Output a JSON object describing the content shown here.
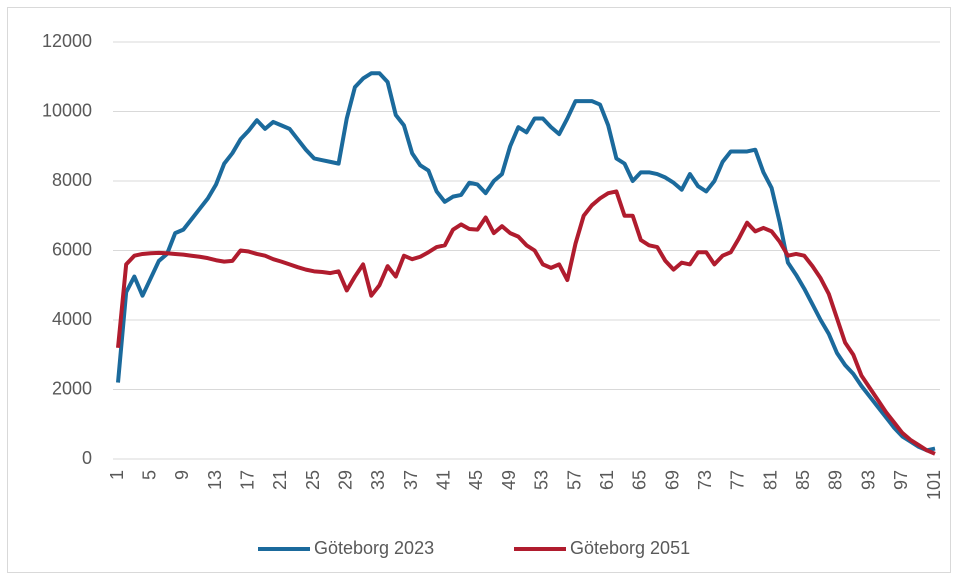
{
  "chart_data": {
    "type": "line",
    "x": [
      1,
      2,
      3,
      4,
      5,
      6,
      7,
      8,
      9,
      10,
      11,
      12,
      13,
      14,
      15,
      16,
      17,
      18,
      19,
      20,
      21,
      22,
      23,
      24,
      25,
      26,
      27,
      28,
      29,
      30,
      31,
      32,
      33,
      34,
      35,
      36,
      37,
      38,
      39,
      40,
      41,
      42,
      43,
      44,
      45,
      46,
      47,
      48,
      49,
      50,
      51,
      52,
      53,
      54,
      55,
      56,
      57,
      58,
      59,
      60,
      61,
      62,
      63,
      64,
      65,
      66,
      67,
      68,
      69,
      70,
      71,
      72,
      73,
      74,
      75,
      76,
      77,
      78,
      79,
      80,
      81,
      82,
      83,
      84,
      85,
      86,
      87,
      88,
      89,
      90,
      91,
      92,
      93,
      94,
      95,
      96,
      97,
      98,
      99,
      100,
      101
    ],
    "xlim": [
      1,
      101
    ],
    "xticks": [
      1,
      5,
      9,
      13,
      17,
      21,
      25,
      29,
      33,
      37,
      41,
      45,
      49,
      53,
      57,
      61,
      65,
      69,
      73,
      77,
      81,
      85,
      89,
      93,
      97,
      101
    ],
    "ylim": [
      0,
      12000
    ],
    "yticks": [
      0,
      2000,
      4000,
      6000,
      8000,
      10000,
      12000
    ],
    "grid": true,
    "legend": "bottom",
    "series": [
      {
        "name": "Göteborg 2023",
        "color": "#1b6a9c",
        "values": [
          2200,
          4800,
          5250,
          4700,
          5200,
          5700,
          5900,
          6500,
          6600,
          6900,
          7200,
          7500,
          7900,
          8500,
          8800,
          9200,
          9450,
          9750,
          9500,
          9700,
          9600,
          9500,
          9200,
          8900,
          8650,
          8600,
          8550,
          8500,
          9800,
          10700,
          10950,
          11100,
          11100,
          10850,
          9900,
          9600,
          8800,
          8450,
          8300,
          7700,
          7400,
          7550,
          7600,
          7950,
          7900,
          7650,
          8000,
          8200,
          9000,
          9550,
          9400,
          9800,
          9800,
          9550,
          9350,
          9800,
          10300,
          10300,
          10300,
          10200,
          9600,
          8650,
          8500,
          8000,
          8250,
          8250,
          8200,
          8100,
          7950,
          7750,
          8200,
          7850,
          7700,
          8000,
          8550,
          8850,
          8850,
          8850,
          8900,
          8250,
          7800,
          6800,
          5650,
          5300,
          4900,
          4450,
          4000,
          3600,
          3050,
          2700,
          2450,
          2100,
          1800,
          1500,
          1200,
          900,
          650,
          500,
          350,
          250,
          300
        ]
      },
      {
        "name": "Göteborg 2051",
        "color": "#b01c2e",
        "values": [
          3200,
          5600,
          5850,
          5900,
          5920,
          5930,
          5920,
          5900,
          5880,
          5850,
          5820,
          5780,
          5720,
          5680,
          5700,
          6000,
          5970,
          5900,
          5850,
          5750,
          5680,
          5600,
          5520,
          5450,
          5400,
          5380,
          5350,
          5400,
          4850,
          5250,
          5600,
          4700,
          5000,
          5550,
          5250,
          5850,
          5750,
          5820,
          5950,
          6100,
          6150,
          6600,
          6750,
          6620,
          6600,
          6950,
          6500,
          6700,
          6500,
          6400,
          6150,
          6000,
          5600,
          5500,
          5600,
          5150,
          6200,
          7000,
          7300,
          7500,
          7650,
          7700,
          7000,
          7000,
          6300,
          6150,
          6100,
          5700,
          5450,
          5650,
          5600,
          5950,
          5950,
          5600,
          5850,
          5950,
          6350,
          6800,
          6550,
          6650,
          6550,
          6250,
          5850,
          5900,
          5850,
          5550,
          5200,
          4750,
          4050,
          3350,
          3000,
          2400,
          2050,
          1700,
          1350,
          1050,
          750,
          550,
          400,
          250,
          150
        ]
      }
    ]
  }
}
